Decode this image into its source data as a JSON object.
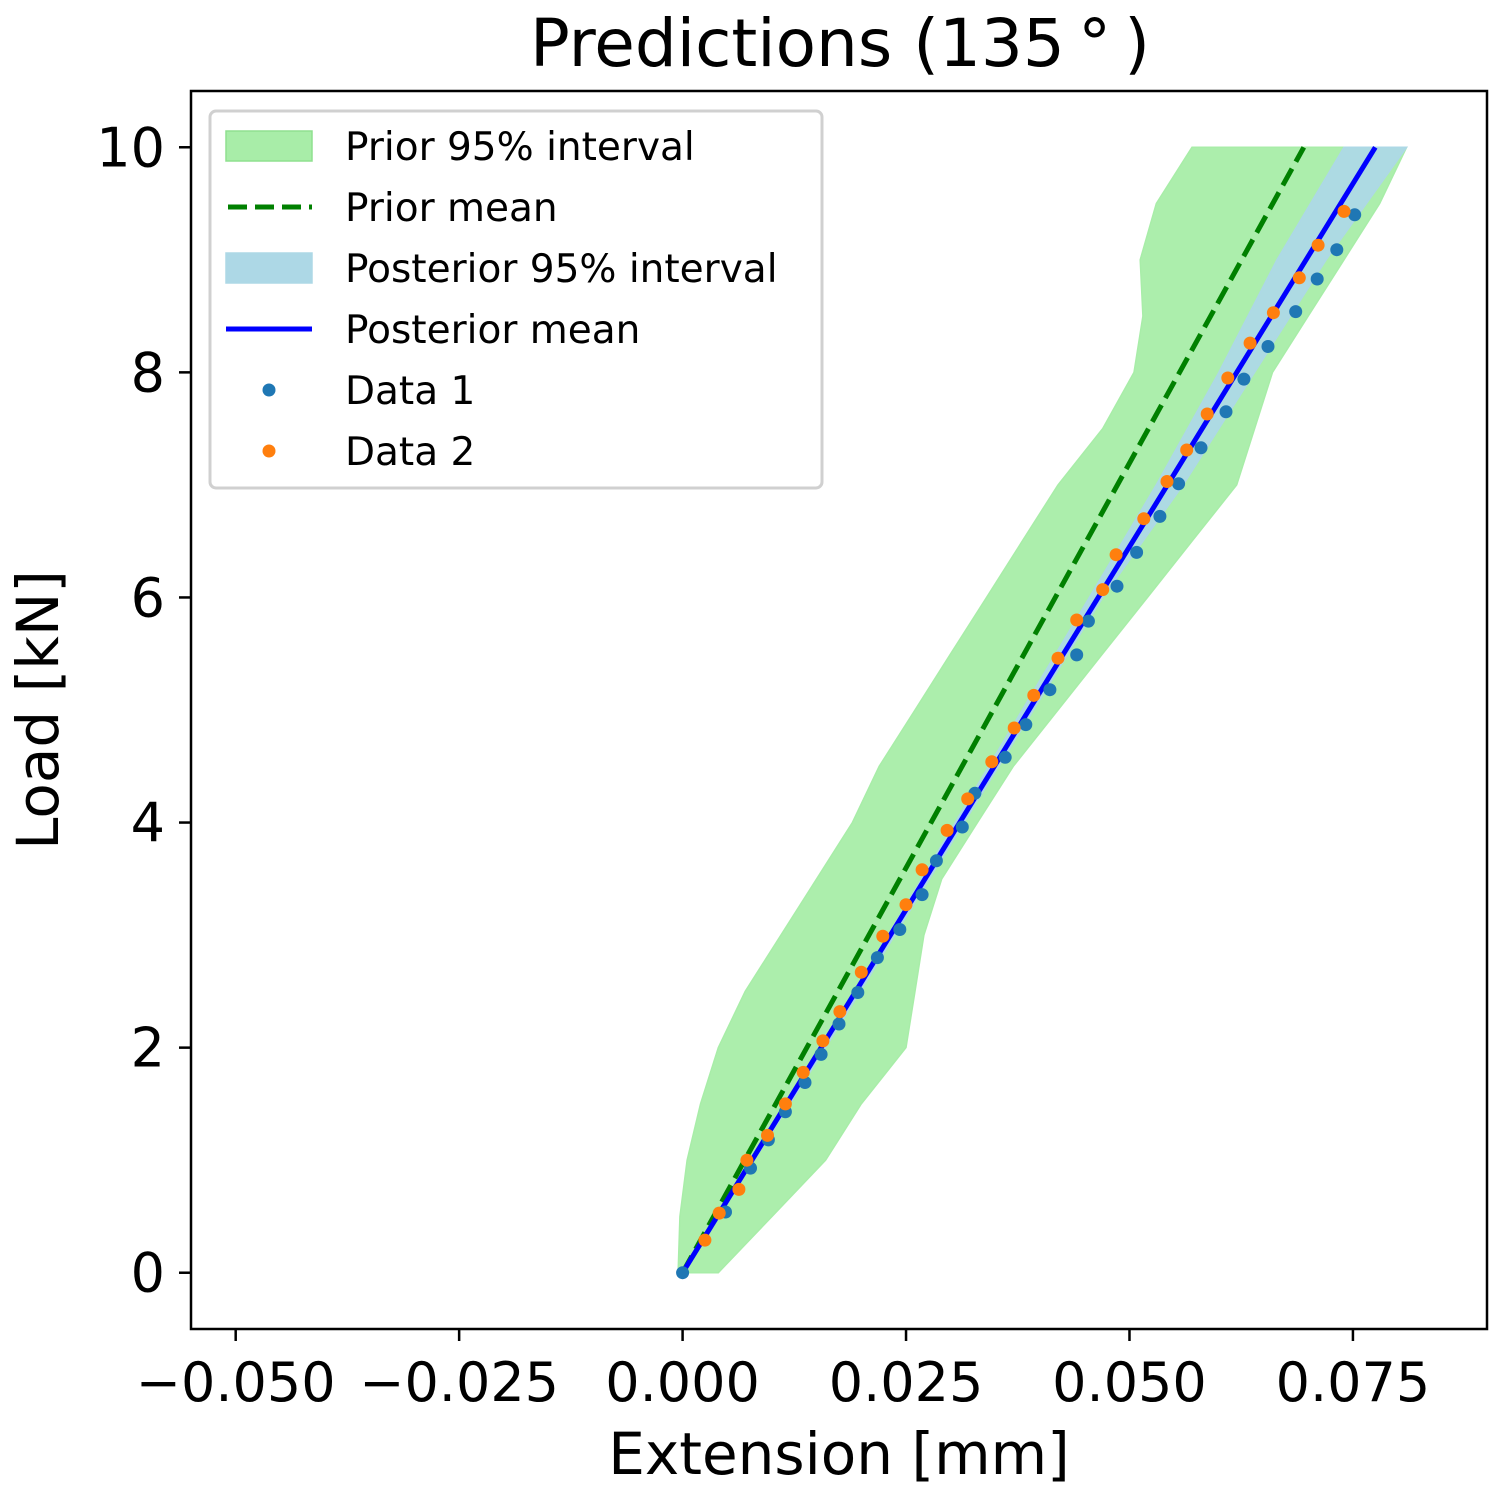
{
  "chart_data": {
    "type": "line",
    "title": "Predictions (135$^\\circ$)",
    "title_display": "Predictions (135 ° )",
    "xlabel": "Extension [mm]",
    "ylabel": "Load [kN]",
    "xlim": [
      -0.055,
      0.09
    ],
    "ylim": [
      -0.5,
      10.5
    ],
    "xticks": [
      -0.05,
      -0.025,
      0.0,
      0.025,
      0.05,
      0.075
    ],
    "xtick_labels": [
      "−0.050",
      "−0.025",
      "0.000",
      "0.025",
      "0.050",
      "0.075"
    ],
    "yticks": [
      0,
      2,
      4,
      6,
      8,
      10
    ],
    "ytick_labels": [
      "0",
      "2",
      "4",
      "6",
      "8",
      "10"
    ],
    "grid": false,
    "legend_position": "top-left",
    "legend": [
      {
        "label": "Prior 95% interval",
        "kind": "patch",
        "color": "#a8eda8",
        "edge": "#8fe08f"
      },
      {
        "label": "Prior mean",
        "kind": "dashed",
        "color": "#008000"
      },
      {
        "label": "Posterior 95% interval",
        "kind": "patch",
        "color": "#add8e6",
        "edge": "#add8e6"
      },
      {
        "label": "Posterior mean",
        "kind": "line",
        "color": "#0000ff"
      },
      {
        "label": "Data 1",
        "kind": "dot",
        "color": "#1f77b4"
      },
      {
        "label": "Data 2",
        "kind": "dot",
        "color": "#ff7f0e"
      }
    ],
    "series": [
      {
        "name": "Prior 95% interval",
        "kind": "band",
        "color": "#a8eda8",
        "y": [
          0,
          0.5,
          1,
          1.5,
          2,
          2.5,
          3,
          3.5,
          4,
          4.5,
          5,
          5.5,
          6,
          6.5,
          7,
          7.5,
          8,
          8.5,
          9,
          9.5,
          10
        ],
        "x_lower": [
          -0.0005,
          -0.0003,
          0.0005,
          0.002,
          0.004,
          0.007,
          0.011,
          0.015,
          0.019,
          0.022,
          0.026,
          0.03,
          0.034,
          0.038,
          0.042,
          0.047,
          0.0505,
          0.0515,
          0.0512,
          0.053,
          0.057
        ],
        "x_upper": [
          0.004,
          0.01,
          0.016,
          0.02,
          0.025,
          0.026,
          0.027,
          0.029,
          0.033,
          0.037,
          0.042,
          0.047,
          0.052,
          0.057,
          0.062,
          0.064,
          0.066,
          0.07,
          0.074,
          0.078,
          0.081
        ]
      },
      {
        "name": "Posterior 95% interval",
        "kind": "band",
        "color": "#add8e6",
        "y": [
          0,
          2,
          4,
          6,
          7,
          8,
          9,
          10
        ],
        "x_lower": [
          0.0,
          0.0155,
          0.0305,
          0.0455,
          0.053,
          0.06,
          0.0665,
          0.074
        ],
        "x_upper": [
          0.0,
          0.016,
          0.0315,
          0.047,
          0.056,
          0.064,
          0.072,
          0.081
        ]
      },
      {
        "name": "Prior mean",
        "kind": "dashed-line",
        "color": "#008000",
        "x": [
          0.0,
          0.0695
        ],
        "y": [
          0,
          10
        ]
      },
      {
        "name": "Posterior mean",
        "kind": "line",
        "color": "#0000ff",
        "x": [
          0.0,
          0.0775
        ],
        "y": [
          0,
          10
        ]
      },
      {
        "name": "Data 1",
        "kind": "scatter",
        "color": "#1f77b4",
        "x": [
          0.0,
          0.0048,
          0.0076,
          0.0096,
          0.0115,
          0.0137,
          0.0155,
          0.0175,
          0.0196,
          0.0218,
          0.0243,
          0.0268,
          0.0284,
          0.0313,
          0.0327,
          0.0361,
          0.0384,
          0.0411,
          0.0441,
          0.0454,
          0.0486,
          0.0508,
          0.0534,
          0.0555,
          0.058,
          0.0608,
          0.0628,
          0.0655,
          0.0686,
          0.071,
          0.0732,
          0.0752
        ],
        "y": [
          0,
          0.54,
          0.93,
          1.18,
          1.43,
          1.69,
          1.94,
          2.21,
          2.49,
          2.8,
          3.05,
          3.36,
          3.66,
          3.96,
          4.26,
          4.58,
          4.87,
          5.18,
          5.49,
          5.79,
          6.1,
          6.4,
          6.72,
          7.01,
          7.33,
          7.65,
          7.94,
          8.23,
          8.54,
          8.83,
          9.09,
          9.4
        ]
      },
      {
        "name": "Data 2",
        "kind": "scatter",
        "color": "#ff7f0e",
        "x": [
          0.0025,
          0.0041,
          0.0063,
          0.0072,
          0.0095,
          0.0115,
          0.0135,
          0.0157,
          0.0176,
          0.02,
          0.0224,
          0.025,
          0.0268,
          0.0296,
          0.0319,
          0.0346,
          0.0371,
          0.0393,
          0.042,
          0.0441,
          0.047,
          0.0485,
          0.0516,
          0.0542,
          0.0564,
          0.0587,
          0.061,
          0.0635,
          0.0661,
          0.069,
          0.0711,
          0.074
        ],
        "y": [
          0.29,
          0.53,
          0.74,
          1.0,
          1.22,
          1.5,
          1.78,
          2.06,
          2.32,
          2.67,
          2.99,
          3.27,
          3.58,
          3.93,
          4.21,
          4.54,
          4.84,
          5.13,
          5.46,
          5.8,
          6.07,
          6.38,
          6.7,
          7.03,
          7.31,
          7.63,
          7.95,
          8.26,
          8.53,
          8.84,
          9.13,
          9.43
        ]
      }
    ]
  }
}
